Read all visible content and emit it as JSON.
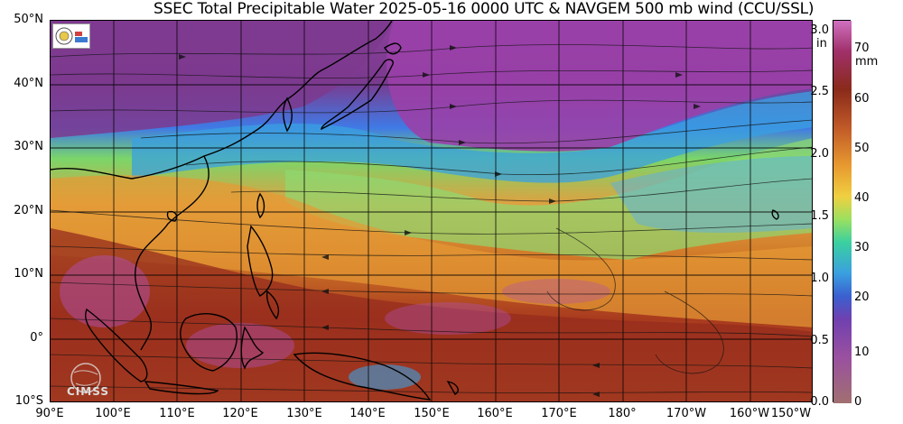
{
  "title": "SSEC Total Precipitable Water  2025-05-16 0000 UTC & NAVGEM 500 mb wind (CCU/SSL)",
  "lat_labels": [
    "50°N",
    "40°N",
    "30°N",
    "20°N",
    "10°N",
    "0°",
    "10°S"
  ],
  "lon_labels": [
    "90°E",
    "100°E",
    "110°E",
    "120°E",
    "130°E",
    "140°E",
    "150°E",
    "160°E",
    "170°E",
    "180°",
    "170°W",
    "160°W",
    "150°W"
  ],
  "colorbar": {
    "inch_unit": "in",
    "mm_unit": "mm",
    "inch_ticks": [
      "3.0",
      "2.5",
      "2.0",
      "1.5",
      "1.0",
      "0.5",
      "0.0"
    ],
    "mm_ticks": [
      "70",
      "60",
      "50",
      "40",
      "30",
      "20",
      "10",
      "0"
    ]
  },
  "logo": {
    "text": "CIMSS"
  },
  "colors": {
    "dry_purple": "#8a3f9a",
    "blue": "#3f9ae6",
    "green": "#7ad66a",
    "orange": "#e08a2a",
    "red_brown": "#8a2a1a",
    "magenta": "#b050b0"
  }
}
